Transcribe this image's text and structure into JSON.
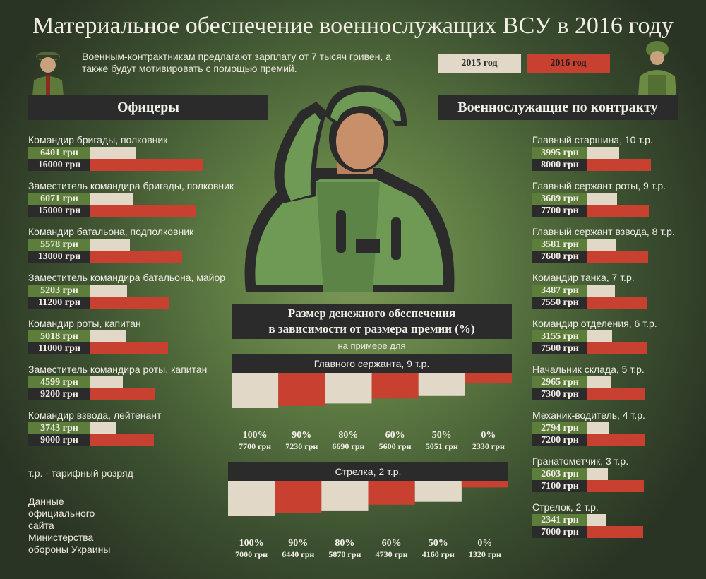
{
  "title": "Материальное обеспечение военнослужащих ВСУ в 2016 году",
  "subtitle": "Военным-контрактникам предлагают зарплату от 7 тысяч гривен, а также будут мотивировать с помощью премий.",
  "legend": {
    "y2015": "2015 год",
    "y2016": "2016 год"
  },
  "colors": {
    "y2015_bar": "#e2d8c8",
    "y2016_bar": "#c8402f",
    "dark": "#2b2b2b",
    "green": "#5c7e3a"
  },
  "icons": [
    "officer-icon",
    "contract-soldier-icon",
    "saluting-soldier-illustration"
  ],
  "officers": {
    "header": "Офицеры",
    "rows": [
      {
        "label": "Командир бригады, полковник",
        "v2015": "6401 грн",
        "v2016": "16000 грн"
      },
      {
        "label": "Заместитель командира бригады, полковник",
        "v2015": "6071 грн",
        "v2016": "15000 грн"
      },
      {
        "label": "Командир батальона, подполковник",
        "v2015": "5578 грн",
        "v2016": "13000 грн"
      },
      {
        "label": "Заместитель командира батальона, майор",
        "v2015": "5203 грн",
        "v2016": "11200 грн"
      },
      {
        "label": "Командир роты, капитан",
        "v2015": "5018 грн",
        "v2016": "11000 грн"
      },
      {
        "label": "Заместитель командира роты, капитан",
        "v2015": "4599 грн",
        "v2016": "9200 грн"
      },
      {
        "label": "Командир взвода, лейтенант",
        "v2015": "3743 грн",
        "v2016": "9000 грн"
      }
    ]
  },
  "contract": {
    "header": "Военнослужащие по контракту",
    "rows": [
      {
        "label": "Главный старшина, 10 т.р.",
        "v2015": "3995 грн",
        "v2016": "8000 грн"
      },
      {
        "label": "Главный сержант роты, 9 т.р.",
        "v2015": "3689 грн",
        "v2016": "7700 грн"
      },
      {
        "label": "Главный сержант взвода, 8 т.р.",
        "v2015": "3581 грн",
        "v2016": "7600 грн"
      },
      {
        "label": "Командир танка, 7 т.р.",
        "v2015": "3487 грн",
        "v2016": "7550 грн"
      },
      {
        "label": "Командир отделения, 6 т.р.",
        "v2015": "3155 грн",
        "v2016": "7500 грн"
      },
      {
        "label": "Начальник склада, 5 т.р.",
        "v2015": "2965 грн",
        "v2016": "7300 грн"
      },
      {
        "label": "Механик-водитель, 4 т.р.",
        "v2015": "2794 грн",
        "v2016": "7200 грн"
      },
      {
        "label": "Гранатометчик, 3 т.р.",
        "v2015": "2603 грн",
        "v2016": "7100 грн"
      },
      {
        "label": "Стрелок, 2 т.р.",
        "v2015": "2341 грн",
        "v2016": "7000 грн"
      }
    ]
  },
  "notes": {
    "tariff": "т.р. - тарифный розряд",
    "source": [
      "Данные",
      "официального",
      "сайта",
      "Министерства",
      "обороны Украины"
    ]
  },
  "bonus": {
    "header_line1": "Размер денежного обеспечения",
    "header_line2": "в зависимости от размера премии (%)",
    "sub": "на примере для",
    "groups": [
      {
        "title": "Главного сержанта, 9 т.р.",
        "percents": [
          "100%",
          "90%",
          "80%",
          "60%",
          "50%",
          "0%"
        ],
        "amounts": [
          "7700 грн",
          "7230 грн",
          "6690 грн",
          "5600 грн",
          "5051 грн",
          "2330 грн"
        ]
      },
      {
        "title": "Стрелка, 2 т.р.",
        "percents": [
          "100%",
          "90%",
          "80%",
          "60%",
          "50%",
          "0%"
        ],
        "amounts": [
          "7000 грн",
          "6440 грн",
          "5870 грн",
          "4730 грн",
          "4160 грн",
          "1320 грн"
        ]
      }
    ]
  },
  "chart_data": [
    {
      "type": "bar",
      "title": "Офицеры",
      "categories": [
        "Командир бригады, полковник",
        "Заместитель командира бригады, полковник",
        "Командир батальона, подполковник",
        "Заместитель командира батальона, майор",
        "Командир роты, капитан",
        "Заместитель командира роты, капитан",
        "Командир взвода, лейтенант"
      ],
      "series": [
        {
          "name": "2015 год",
          "values": [
            6401,
            6071,
            5578,
            5203,
            5018,
            4599,
            3743
          ]
        },
        {
          "name": "2016 год",
          "values": [
            16000,
            15000,
            13000,
            11200,
            11000,
            9200,
            9000
          ]
        }
      ],
      "orientation": "horizontal"
    },
    {
      "type": "bar",
      "title": "Военнослужащие по контракту",
      "categories": [
        "Главный старшина, 10 т.р.",
        "Главный сержант роты, 9 т.р.",
        "Главный сержант взвода, 8 т.р.",
        "Командир танка, 7 т.р.",
        "Командир отделения, 6 т.р.",
        "Начальник склада, 5 т.р.",
        "Механик-водитель, 4 т.р.",
        "Гранатометчик, 3 т.р.",
        "Стрелок, 2 т.р."
      ],
      "series": [
        {
          "name": "2015 год",
          "values": [
            3995,
            3689,
            3581,
            3487,
            3155,
            2965,
            2794,
            2603,
            2341
          ]
        },
        {
          "name": "2016 год",
          "values": [
            8000,
            7700,
            7600,
            7550,
            7500,
            7300,
            7200,
            7100,
            7000
          ]
        }
      ],
      "orientation": "horizontal"
    },
    {
      "type": "bar",
      "title": "Главного сержанта, 9 т.р.",
      "categories": [
        "100%",
        "90%",
        "80%",
        "60%",
        "50%",
        "0%"
      ],
      "values": [
        7700,
        7230,
        6690,
        5600,
        5051,
        2330
      ],
      "orientation": "vertical-hanging"
    },
    {
      "type": "bar",
      "title": "Стрелка, 2 т.р.",
      "categories": [
        "100%",
        "90%",
        "80%",
        "60%",
        "50%",
        "0%"
      ],
      "values": [
        7000,
        6440,
        5870,
        4730,
        4160,
        1320
      ],
      "orientation": "vertical-hanging"
    }
  ]
}
